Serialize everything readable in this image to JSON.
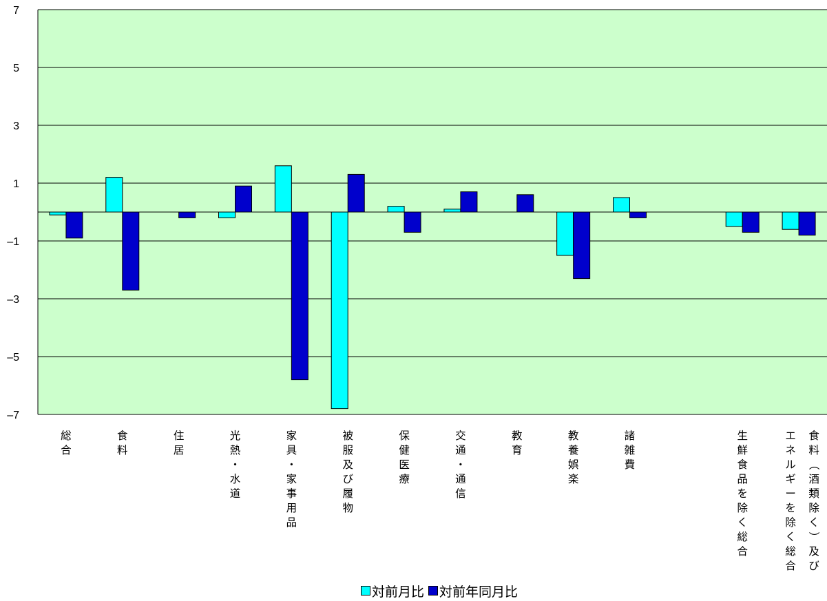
{
  "chart_data": {
    "type": "bar",
    "title": "",
    "xlabel": "",
    "ylabel": "",
    "ylim": [
      -7,
      7
    ],
    "yticks": [
      7,
      5,
      3,
      1,
      -1,
      -3,
      -5,
      -7
    ],
    "ytick_labels": [
      "7",
      "5",
      "3",
      "1",
      "–1",
      "–3",
      "–5",
      "–7"
    ],
    "grid": true,
    "legend_position": "bottom",
    "background_color": "#ccffcc",
    "categories": [
      "総合",
      "食料",
      "住居",
      "光熱・水道",
      "家具・家事用品",
      "被服及び履物",
      "保健医療",
      "交通・通信",
      "教育",
      "教養娯楽",
      "諸雑費",
      "",
      "生鮮食品を除く総合",
      "食料（酒類除く）及びエネルギーを除く総合"
    ],
    "series": [
      {
        "name": "対前月比",
        "color": "#00ffff",
        "values": [
          -0.1,
          1.2,
          0.0,
          -0.2,
          1.6,
          -6.8,
          0.2,
          0.1,
          0.0,
          -1.5,
          0.5,
          null,
          -0.5,
          -0.6
        ]
      },
      {
        "name": "対前年同月比",
        "color": "#0000cc",
        "values": [
          -0.9,
          -2.7,
          -0.2,
          0.9,
          -5.8,
          1.3,
          -0.7,
          0.7,
          0.6,
          -2.3,
          -0.2,
          null,
          -0.7,
          -0.8
        ]
      }
    ]
  }
}
